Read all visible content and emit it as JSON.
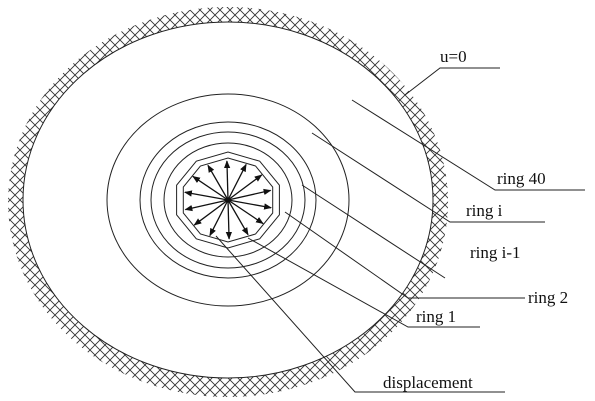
{
  "labels": {
    "boundary": "u=0",
    "outer_ring": "ring 40",
    "ring_i": "ring i",
    "ring_i_minus_1": "ring i-1",
    "ring_2": "ring 2",
    "ring_1": "ring 1",
    "displacement": "displacement"
  }
}
